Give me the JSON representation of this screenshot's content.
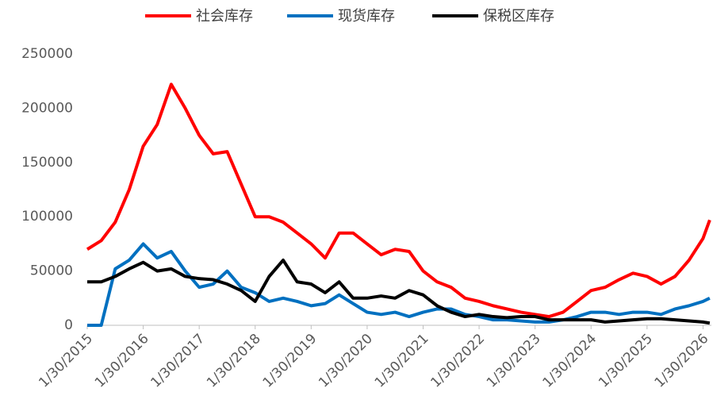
{
  "chart_data": {
    "type": "line",
    "x": [
      2015.08,
      2015.33,
      2015.58,
      2015.83,
      2016.08,
      2016.33,
      2016.58,
      2016.83,
      2017.08,
      2017.33,
      2017.58,
      2017.83,
      2018.08,
      2018.33,
      2018.58,
      2018.83,
      2019.08,
      2019.33,
      2019.58,
      2019.83,
      2020.08,
      2020.33,
      2020.58,
      2020.83,
      2021.08,
      2021.33,
      2021.58,
      2021.83,
      2022.08,
      2022.33,
      2022.58,
      2022.83,
      2023.08,
      2023.33,
      2023.58,
      2023.83,
      2024.08,
      2024.33,
      2024.58,
      2024.83,
      2025.08,
      2025.33,
      2025.58,
      2025.83,
      2026.08,
      2026.2
    ],
    "series": [
      {
        "name": "社会库存",
        "color": "#ff0000",
        "values": [
          70000,
          78000,
          95000,
          125000,
          165000,
          185000,
          222000,
          200000,
          175000,
          158000,
          160000,
          130000,
          100000,
          100000,
          95000,
          85000,
          75000,
          62000,
          85000,
          85000,
          75000,
          65000,
          70000,
          68000,
          50000,
          40000,
          35000,
          25000,
          22000,
          18000,
          15000,
          12000,
          10000,
          8000,
          12000,
          22000,
          32000,
          35000,
          42000,
          48000,
          45000,
          38000,
          45000,
          60000,
          80000,
          97000
        ]
      },
      {
        "name": "现货库存",
        "color": "#0070c0",
        "values": [
          0,
          0,
          52000,
          60000,
          75000,
          62000,
          68000,
          50000,
          35000,
          38000,
          50000,
          35000,
          30000,
          22000,
          25000,
          22000,
          18000,
          20000,
          28000,
          20000,
          12000,
          10000,
          12000,
          8000,
          12000,
          15000,
          15000,
          10000,
          8000,
          5000,
          5000,
          4000,
          3000,
          3000,
          5000,
          8000,
          12000,
          12000,
          10000,
          12000,
          12000,
          10000,
          15000,
          18000,
          22000,
          25000
        ]
      },
      {
        "name": "保税区库存",
        "color": "#000000",
        "values": [
          40000,
          40000,
          45000,
          52000,
          58000,
          50000,
          52000,
          45000,
          43000,
          42000,
          38000,
          32000,
          22000,
          45000,
          60000,
          40000,
          38000,
          30000,
          40000,
          25000,
          25000,
          27000,
          25000,
          32000,
          28000,
          18000,
          12000,
          8000,
          10000,
          8000,
          7000,
          8000,
          8000,
          5000,
          5000,
          5000,
          5000,
          3000,
          4000,
          5000,
          6000,
          6000,
          5000,
          4000,
          3000,
          2000
        ]
      }
    ],
    "xlim": [
      2015.08,
      2026.23
    ],
    "xticks": [
      {
        "value": 2015.08,
        "label": "1/30/2015"
      },
      {
        "value": 2016.08,
        "label": "1/30/2016"
      },
      {
        "value": 2017.08,
        "label": "1/30/2017"
      },
      {
        "value": 2018.08,
        "label": "1/30/2018"
      },
      {
        "value": 2019.08,
        "label": "1/30/2019"
      },
      {
        "value": 2020.08,
        "label": "1/30/2020"
      },
      {
        "value": 2021.08,
        "label": "1/30/2021"
      },
      {
        "value": 2022.08,
        "label": "1/30/2022"
      },
      {
        "value": 2023.08,
        "label": "1/30/2023"
      },
      {
        "value": 2024.08,
        "label": "1/30/2024"
      },
      {
        "value": 2025.08,
        "label": "1/30/2025"
      },
      {
        "value": 2026.08,
        "label": "1/30/2026"
      }
    ],
    "ylim": [
      0,
      250000
    ],
    "yticks": [
      0,
      50000,
      100000,
      150000,
      200000,
      250000
    ],
    "legend": "top"
  }
}
